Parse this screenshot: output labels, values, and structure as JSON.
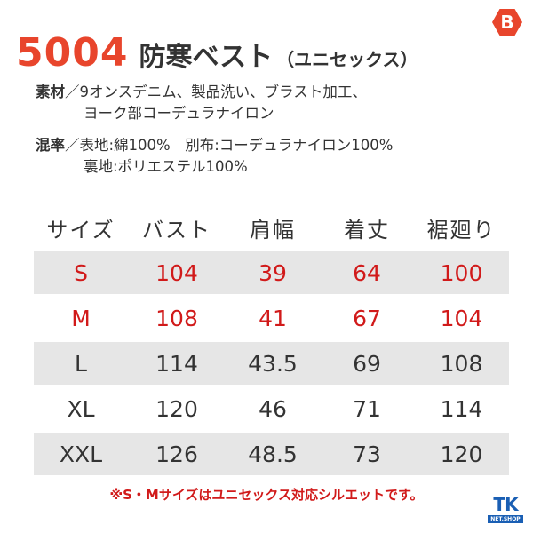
{
  "brand": {
    "icon": "burtle-logo-icon",
    "glyph": "B",
    "color": "#e8452c"
  },
  "header": {
    "model_number": "5004",
    "product_name": "防寒ベスト",
    "product_sub": "（ユニセックス）"
  },
  "specs": {
    "material": {
      "label": "素材",
      "separator": "／",
      "lines": [
        "9オンスデニム、製品洗い、ブラスト加工、",
        "ヨーク部コーデュラナイロン"
      ]
    },
    "blend": {
      "label": "混率",
      "separator": "／",
      "lines": [
        "表地:綿100%　別布:コーデュラナイロン100%",
        "裏地:ポリエステル100%"
      ]
    }
  },
  "size_table": {
    "headers": [
      "サイズ",
      "バスト",
      "肩幅",
      "着丈",
      "裾廻り"
    ],
    "rows": [
      {
        "size": "S",
        "bust": "104",
        "shoulder": "39",
        "length": "64",
        "hem": "100"
      },
      {
        "size": "M",
        "bust": "108",
        "shoulder": "41",
        "length": "67",
        "hem": "104"
      },
      {
        "size": "L",
        "bust": "114",
        "shoulder": "43.5",
        "length": "69",
        "hem": "108"
      },
      {
        "size": "XL",
        "bust": "120",
        "shoulder": "46",
        "length": "71",
        "hem": "114"
      },
      {
        "size": "XXL",
        "bust": "126",
        "shoulder": "48.5",
        "length": "73",
        "hem": "120"
      }
    ]
  },
  "footnote": "※S・Mサイズはユニセックス対応シルエットです。",
  "shop_logo": {
    "main": "TK",
    "sub": "NET.SHOP",
    "color": "#1a5fb4"
  },
  "colors": {
    "accent": "#e8452c",
    "highlight_text": "#d11a1a",
    "row_shade": "#e6e6e6",
    "text": "#333333"
  }
}
